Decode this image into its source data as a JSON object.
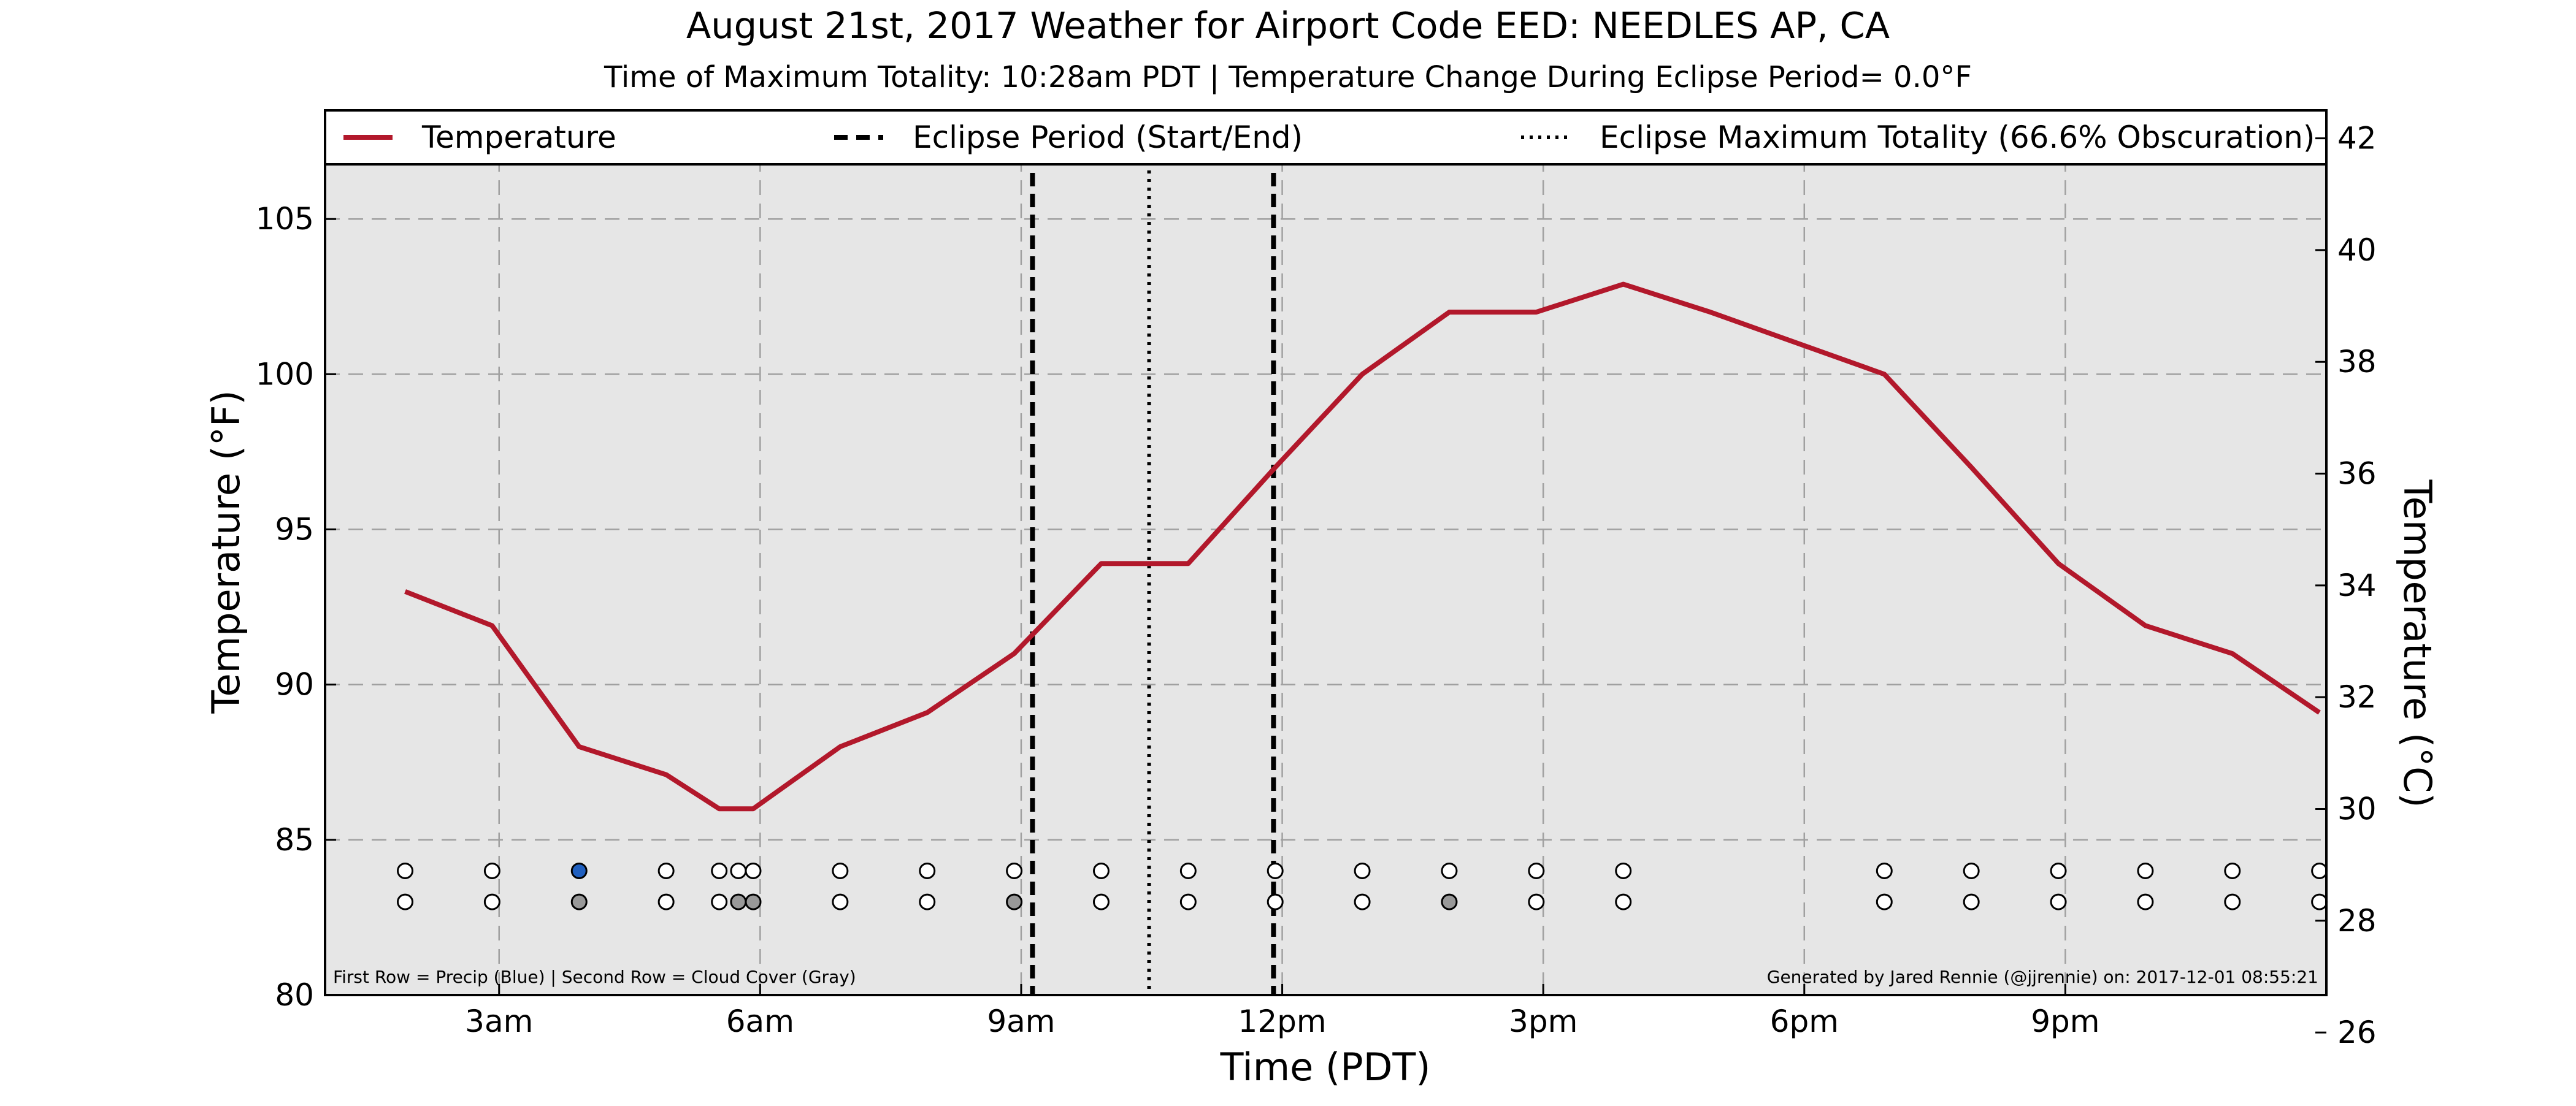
{
  "chart_data": {
    "type": "line",
    "title": "August 21st, 2017 Weather for Airport Code EED: NEEDLES AP, CA",
    "subtitle": "Time of Maximum Totality: 10:28am PDT | Temperature Change During Eclipse Period= 0.0°F",
    "xlabel": "Time (PDT)",
    "ylabel": "Temperature (°F)",
    "ylabel_right": "Temperature (°C)",
    "xlim": [
      1.0,
      24.0
    ],
    "ylim": [
      80,
      108.5
    ],
    "ylim_right": [
      26.67,
      42.5
    ],
    "x_ticks": [
      {
        "x": 3,
        "label": "3am"
      },
      {
        "x": 6,
        "label": "6am"
      },
      {
        "x": 9,
        "label": "9am"
      },
      {
        "x": 12,
        "label": "12pm"
      },
      {
        "x": 15,
        "label": "3pm"
      },
      {
        "x": 18,
        "label": "6pm"
      },
      {
        "x": 21,
        "label": "9pm"
      }
    ],
    "y_ticks": [
      {
        "y": 80,
        "label": "80"
      },
      {
        "y": 85,
        "label": "85"
      },
      {
        "y": 90,
        "label": "90"
      },
      {
        "y": 95,
        "label": "95"
      },
      {
        "y": 100,
        "label": "100"
      },
      {
        "y": 105,
        "label": "105"
      }
    ],
    "y_ticks_right": [
      {
        "y": 26,
        "label": "26"
      },
      {
        "y": 28,
        "label": "28"
      },
      {
        "y": 30,
        "label": "30"
      },
      {
        "y": 32,
        "label": "32"
      },
      {
        "y": 34,
        "label": "34"
      },
      {
        "y": 36,
        "label": "36"
      },
      {
        "y": 38,
        "label": "38"
      },
      {
        "y": 40,
        "label": "40"
      },
      {
        "y": 42,
        "label": "42"
      }
    ],
    "grid": true,
    "legend_position": "top, full width above plot",
    "series": [
      {
        "name": "Temperature",
        "color": "#b2182b",
        "x": [
          1.92,
          2.92,
          3.92,
          4.92,
          5.53,
          5.92,
          6.92,
          7.92,
          8.92,
          9.92,
          10.92,
          11.92,
          12.92,
          13.92,
          14.92,
          15.92,
          16.92,
          17.92,
          18.92,
          19.92,
          20.92,
          21.92,
          22.92,
          23.92
        ],
        "y": [
          93,
          91.9,
          88,
          87.1,
          86,
          86,
          88,
          89.1,
          91,
          93.9,
          93.9,
          97,
          100,
          102,
          102,
          102.9,
          102,
          101,
          100,
          97,
          93.9,
          91.9,
          91,
          89.1
        ]
      }
    ],
    "legend": [
      {
        "label": "Temperature",
        "style": "solid",
        "color": "#b2182b"
      },
      {
        "label": "Eclipse Period (Start/End)",
        "style": "dashed",
        "color": "#000000"
      },
      {
        "label": "Eclipse Maximum Totality (66.6% Obscuration)",
        "style": "dotted",
        "color": "#000000"
      }
    ],
    "eclipse_lines": [
      {
        "x": 9.13,
        "style": "dashed"
      },
      {
        "x": 10.47,
        "style": "dotted"
      },
      {
        "x": 11.9,
        "style": "dashed"
      }
    ],
    "obs_rows": {
      "x": [
        1.92,
        2.92,
        3.92,
        4.92,
        5.53,
        5.75,
        5.92,
        6.92,
        7.92,
        8.92,
        9.92,
        10.92,
        11.92,
        12.92,
        13.92,
        14.92,
        15.92,
        18.92,
        19.92,
        20.92,
        21.92,
        22.92,
        23.92
      ],
      "precip_y": 84,
      "cloud_y": 83,
      "precip_colors": [
        "#ffffff",
        "#ffffff",
        "#1f5fbf",
        "#ffffff",
        "#ffffff",
        "#ffffff",
        "#ffffff",
        "#ffffff",
        "#ffffff",
        "#ffffff",
        "#ffffff",
        "#ffffff",
        "#ffffff",
        "#ffffff",
        "#ffffff",
        "#ffffff",
        "#ffffff",
        "#ffffff",
        "#ffffff",
        "#ffffff",
        "#ffffff",
        "#ffffff",
        "#ffffff"
      ],
      "cloud_colors": [
        "#ffffff",
        "#ffffff",
        "#999999",
        "#ffffff",
        "#ffffff",
        "#999999",
        "#999999",
        "#ffffff",
        "#ffffff",
        "#999999",
        "#ffffff",
        "#ffffff",
        "#ffffff",
        "#ffffff",
        "#999999",
        "#ffffff",
        "#ffffff",
        "#ffffff",
        "#ffffff",
        "#ffffff",
        "#ffffff",
        "#ffffff",
        "#ffffff"
      ]
    },
    "note_left": "First Row = Precip (Blue) | Second Row = Cloud Cover (Gray)",
    "note_right": "Generated by Jared Rennie (@jjrennie) on: 2017-12-01 08:55:21"
  }
}
